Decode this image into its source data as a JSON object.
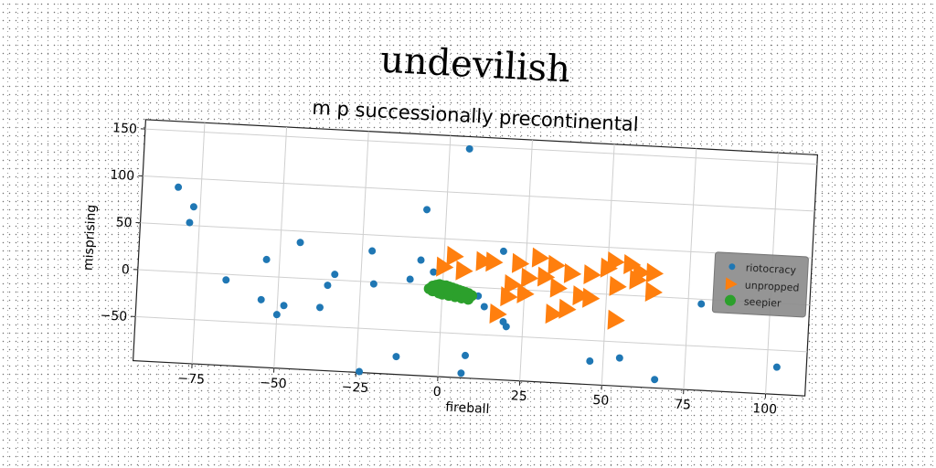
{
  "chart_data": {
    "type": "scatter",
    "title": "undevilish",
    "subtitle": "m p successionally precontinental",
    "xlabel": "fireball",
    "ylabel": "misprising",
    "xlim": [
      -93,
      112
    ],
    "ylim": [
      -97,
      160
    ],
    "xticks": [
      -75,
      -50,
      -25,
      0,
      25,
      50,
      75,
      100
    ],
    "yticks": [
      -50,
      0,
      50,
      100,
      150
    ],
    "xtick_labels": [
      "−75",
      "−50",
      "−25",
      "0",
      "25",
      "50",
      "75",
      "100"
    ],
    "ytick_labels": [
      "−50",
      "0",
      "50",
      "100",
      "150"
    ],
    "grid": true,
    "legend_position": "right",
    "rotation_deg": 3,
    "series": [
      {
        "name": "riotocracy",
        "marker": "circle",
        "color": "#1f77b4",
        "points": [
          [
            -82,
            90
          ],
          [
            -77,
            70
          ],
          [
            -78,
            53
          ],
          [
            -66,
            -6
          ],
          [
            -54,
            18
          ],
          [
            -55,
            -25
          ],
          [
            -50,
            -40
          ],
          [
            -48,
            -30
          ],
          [
            -44,
            38
          ],
          [
            -37,
            -30
          ],
          [
            -35,
            -6
          ],
          [
            -33,
            6
          ],
          [
            -22,
            33
          ],
          [
            -21,
            -2
          ],
          [
            -24,
            -96
          ],
          [
            -13,
            -78
          ],
          [
            -6,
            80
          ],
          [
            -7,
            26
          ],
          [
            -10,
            5
          ],
          [
            -3,
            14
          ],
          [
            -1,
            -4
          ],
          [
            6,
            147
          ],
          [
            7,
            -92
          ],
          [
            8,
            -73
          ],
          [
            11,
            -9
          ],
          [
            13,
            -20
          ],
          [
            18,
            40
          ],
          [
            19,
            -35
          ],
          [
            20,
            -40
          ],
          [
            46,
            -72
          ],
          [
            55,
            -67
          ],
          [
            66,
            -88
          ],
          [
            79,
            -5
          ],
          [
            103,
            -68
          ]
        ]
      },
      {
        "name": "unpropped",
        "marker": "triangle-right",
        "color": "#ff7f0e",
        "points": [
          [
            3,
            32
          ],
          [
            0,
            20
          ],
          [
            6,
            17
          ],
          [
            12,
            28
          ],
          [
            15,
            28
          ],
          [
            23,
            28
          ],
          [
            29,
            35
          ],
          [
            34,
            28
          ],
          [
            26,
            13
          ],
          [
            21,
            5
          ],
          [
            31,
            15
          ],
          [
            39,
            20
          ],
          [
            20,
            -8
          ],
          [
            25,
            -4
          ],
          [
            35,
            4
          ],
          [
            42,
            -3
          ],
          [
            45,
            20
          ],
          [
            50,
            28
          ],
          [
            52,
            35
          ],
          [
            57,
            33
          ],
          [
            60,
            25
          ],
          [
            64,
            25
          ],
          [
            59,
            17
          ],
          [
            53,
            9
          ],
          [
            45,
            -5
          ],
          [
            64,
            5
          ],
          [
            17,
            -27
          ],
          [
            34,
            -24
          ],
          [
            38,
            -18
          ],
          [
            53,
            -27
          ]
        ]
      },
      {
        "name": "seepier",
        "marker": "circle",
        "color": "#2ca02c",
        "points": [
          [
            -4,
            -4
          ],
          [
            -3,
            -1
          ],
          [
            -2,
            0
          ],
          [
            -1,
            1
          ],
          [
            0,
            0
          ],
          [
            1,
            0
          ],
          [
            2,
            -1
          ],
          [
            3,
            -2
          ],
          [
            4,
            -3
          ],
          [
            5,
            -4
          ],
          [
            6,
            -5
          ],
          [
            7,
            -6
          ],
          [
            8,
            -7
          ],
          [
            9,
            -9
          ],
          [
            -3,
            -6
          ],
          [
            -1,
            -8
          ],
          [
            0,
            -9
          ],
          [
            2,
            -10
          ],
          [
            4,
            -11
          ],
          [
            6,
            -12
          ],
          [
            8,
            -13
          ],
          [
            1,
            -5
          ],
          [
            3,
            -6
          ],
          [
            5,
            -8
          ],
          [
            7,
            -10
          ],
          [
            -2,
            -3
          ],
          [
            0,
            -4
          ],
          [
            2,
            -5
          ]
        ]
      }
    ]
  }
}
